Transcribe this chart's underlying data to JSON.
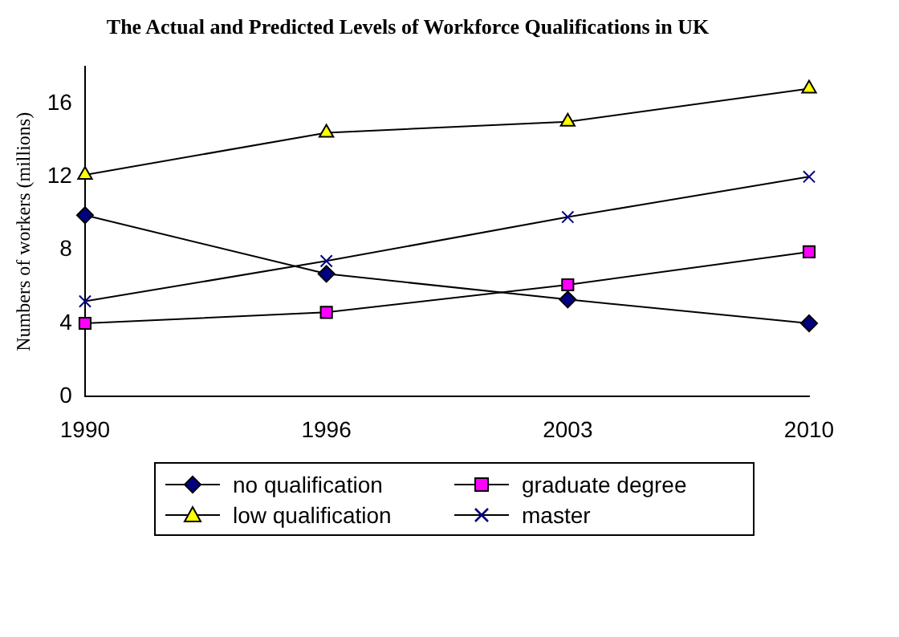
{
  "chart_data": {
    "type": "line",
    "title": "The Actual and Predicted Levels of Workforce Qualifications in UK",
    "ylabel": "Numbers of workers (millions)",
    "categories": [
      "1990",
      "1996",
      "2003",
      "2010"
    ],
    "series": [
      {
        "name": "no qualification",
        "color": "#000080",
        "marker": "diamond",
        "values": [
          9.9,
          6.7,
          5.3,
          4.0
        ]
      },
      {
        "name": "graduate degree",
        "color": "#ff00ff",
        "marker": "square",
        "values": [
          4.0,
          4.6,
          6.1,
          7.9
        ]
      },
      {
        "name": "low qualification",
        "color": "#ffff00",
        "marker": "triangle",
        "values": [
          12.1,
          14.4,
          15.0,
          16.8
        ]
      },
      {
        "name": "master",
        "color": "#000080",
        "marker": "cross",
        "values": [
          5.2,
          7.4,
          9.8,
          12.0
        ]
      }
    ],
    "ylim": [
      0,
      18
    ],
    "yticks": [
      0,
      4,
      8,
      12,
      16
    ],
    "grid": false,
    "legend": "bottom"
  }
}
